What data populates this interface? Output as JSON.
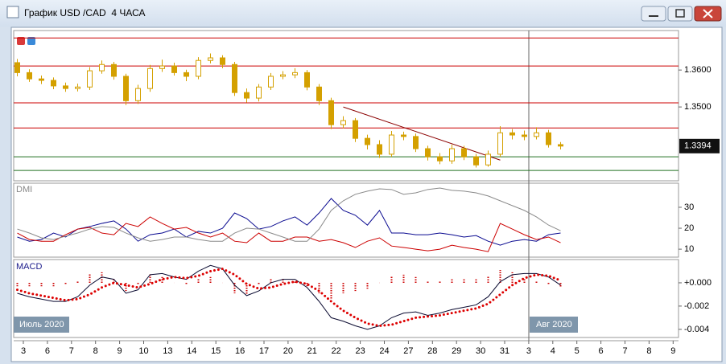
{
  "window": {
    "title": "График USD /CAD  4 ЧАСА"
  },
  "x_labels": [
    "3",
    "6",
    "7",
    "8",
    "9",
    "10",
    "13",
    "14",
    "15",
    "16",
    "17",
    "20",
    "21",
    "22",
    "23",
    "24",
    "27",
    "28",
    "29",
    "30",
    "31",
    "3",
    "4",
    "5",
    "6",
    "7",
    "8",
    "9"
  ],
  "period_labels": [
    "Июль 2020",
    "Авг 2020"
  ],
  "chart_data": [
    {
      "type": "candlestick",
      "color": "#d4a000",
      "ylim": [
        1.33,
        1.3707
      ],
      "yticks": [
        {
          "value": 1.36,
          "label": "1.3600"
        },
        {
          "value": 1.35,
          "label": "1.3500"
        }
      ],
      "open": [
        1.362,
        1.3593,
        1.3576,
        1.3572,
        1.3557,
        1.355,
        1.3554,
        1.3598,
        1.3615,
        1.3583,
        1.3517,
        1.355,
        1.3604,
        1.3611,
        1.3593,
        1.3583,
        1.3626,
        1.3633,
        1.3615,
        1.3539,
        1.3524,
        1.3554,
        1.3583,
        1.3587,
        1.3593,
        1.3554,
        1.3517,
        1.3452,
        1.3463,
        1.3415,
        1.3398,
        1.3372,
        1.3424,
        1.342,
        1.3387,
        1.3365,
        1.3354,
        1.3387,
        1.3365,
        1.3343,
        1.3372,
        1.343,
        1.3424,
        1.342,
        1.343,
        1.3398
      ],
      "high": [
        1.363,
        1.3602,
        1.3585,
        1.358,
        1.3566,
        1.3563,
        1.3608,
        1.3626,
        1.3622,
        1.359,
        1.356,
        1.3614,
        1.3628,
        1.362,
        1.3601,
        1.3635,
        1.3645,
        1.364,
        1.3622,
        1.355,
        1.3562,
        1.3592,
        1.3597,
        1.3605,
        1.36,
        1.3562,
        1.3525,
        1.3475,
        1.347,
        1.3425,
        1.341,
        1.3435,
        1.3433,
        1.3428,
        1.3395,
        1.3375,
        1.3398,
        1.3395,
        1.3373,
        1.3382,
        1.3448,
        1.344,
        1.3436,
        1.3445,
        1.3438,
        1.3405
      ],
      "low": [
        1.3583,
        1.3568,
        1.3562,
        1.3548,
        1.3541,
        1.3542,
        1.3546,
        1.359,
        1.3574,
        1.3505,
        1.3508,
        1.3541,
        1.3595,
        1.3585,
        1.357,
        1.3575,
        1.3618,
        1.3605,
        1.353,
        1.3512,
        1.3515,
        1.3546,
        1.3575,
        1.3578,
        1.3545,
        1.3505,
        1.344,
        1.3442,
        1.3405,
        1.3385,
        1.3362,
        1.3365,
        1.341,
        1.3378,
        1.3355,
        1.3345,
        1.3346,
        1.3356,
        1.3336,
        1.3338,
        1.3365,
        1.3412,
        1.341,
        1.3412,
        1.339,
        1.3385
      ],
      "close": [
        1.3593,
        1.3576,
        1.3572,
        1.3557,
        1.355,
        1.3554,
        1.3598,
        1.3615,
        1.3583,
        1.3517,
        1.355,
        1.3604,
        1.3611,
        1.3593,
        1.3583,
        1.3626,
        1.3633,
        1.3615,
        1.3539,
        1.3524,
        1.3554,
        1.3583,
        1.3587,
        1.3593,
        1.3554,
        1.3517,
        1.3452,
        1.3463,
        1.3415,
        1.3398,
        1.3372,
        1.3424,
        1.342,
        1.3387,
        1.3365,
        1.3354,
        1.3387,
        1.3365,
        1.3343,
        1.3372,
        1.343,
        1.3424,
        1.342,
        1.343,
        1.3398,
        1.3394
      ],
      "levels": [
        {
          "value": 1.3687,
          "color": "#cc0000"
        },
        {
          "value": 1.3611,
          "color": "#cc0000"
        },
        {
          "value": 1.3511,
          "color": "#cc0000"
        },
        {
          "value": 1.3443,
          "color": "#cc0000"
        },
        {
          "value": 1.3365,
          "color": "#207020"
        },
        {
          "value": 1.3328,
          "color": "#207020"
        }
      ],
      "trendline": {
        "from": [
          27,
          1.35
        ],
        "to": [
          40,
          1.3356
        ],
        "color": "#8b0000"
      }
    },
    {
      "type": "line",
      "title": "DMI",
      "ylim": [
        6.2,
        41.5
      ],
      "yticks": [
        10,
        20,
        30
      ],
      "series": [
        {
          "style": "line",
          "color": "#0a0a90",
          "values": [
            15.8,
            13.8,
            14.6,
            17.7,
            15.8,
            19.6,
            20.8,
            22.3,
            23.5,
            19.6,
            13.8,
            16.9,
            17.7,
            19.6,
            15.8,
            18.5,
            17.7,
            20.0,
            27.3,
            24.6,
            19.6,
            20.8,
            23.5,
            25.4,
            21.5,
            27.3,
            34.2,
            28.5,
            26.2,
            21.5,
            28.5,
            17.7,
            17.7,
            16.9,
            16.9,
            17.7,
            16.9,
            15.8,
            16.5,
            13.8,
            11.9,
            13.8,
            14.6,
            13.8,
            16.9,
            17.7
          ]
        },
        {
          "style": "line",
          "color": "#cc0000",
          "values": [
            17.7,
            14.6,
            13.8,
            13.8,
            16.9,
            19.6,
            20.4,
            17.7,
            16.9,
            22.3,
            20.8,
            25.4,
            22.3,
            19.6,
            20.4,
            17.7,
            15.8,
            17.7,
            13.8,
            13.1,
            17.7,
            13.8,
            13.8,
            15.8,
            15.8,
            13.8,
            14.6,
            13.1,
            10.8,
            13.8,
            15.4,
            11.5,
            10.8,
            10.0,
            9.2,
            10.0,
            11.9,
            10.8,
            10.0,
            8.8,
            22.3,
            19.6,
            16.9,
            14.6,
            15.8,
            13.1
          ]
        },
        {
          "style": "line",
          "color": "#8a8a8a",
          "values": [
            19.6,
            17.7,
            15.4,
            14.6,
            16.2,
            17.7,
            19.6,
            20.8,
            20.4,
            17.7,
            15.4,
            13.8,
            14.6,
            15.8,
            15.8,
            14.6,
            13.8,
            13.8,
            17.7,
            20.0,
            19.6,
            17.7,
            15.8,
            13.8,
            13.8,
            19.6,
            28.5,
            33.1,
            36.2,
            37.7,
            38.8,
            38.5,
            36.2,
            36.9,
            38.5,
            39.2,
            38.1,
            37.7,
            36.9,
            35.4,
            33.1,
            30.8,
            28.5,
            25.4,
            21.5,
            18.8
          ]
        }
      ]
    },
    {
      "type": "line",
      "title": "MACD",
      "ylim": [
        -0.0047,
        0.002
      ],
      "yticks": [
        {
          "value": 0,
          "label": "+0.000"
        },
        {
          "value": -0.002,
          "label": "-0.002"
        },
        {
          "value": -0.004,
          "label": "-0.004"
        }
      ],
      "series": [
        {
          "style": "bar",
          "color": "#cc0000",
          "values": [
            -0.0003,
            -0.0003,
            -0.0003,
            -0.0003,
            -0.0001,
            0.0002,
            0.0008,
            0.0009,
            0.0003,
            -0.0007,
            -0.0002,
            0.0008,
            0.0005,
            0.0,
            -0.0001,
            0.0004,
            0.0005,
            0.0,
            -0.0009,
            -0.001,
            -0.0002,
            0.0004,
            0.0004,
            0.0002,
            -0.0003,
            -0.0009,
            -0.0014,
            -0.0009,
            -0.0007,
            -0.0005,
            0.0,
            0.0006,
            0.0007,
            0.0005,
            0.0001,
            0.0002,
            0.0003,
            0.0003,
            0.0003,
            0.0006,
            0.0011,
            0.0009,
            0.0004,
            0.0001,
            -0.0001,
            -0.0004
          ]
        },
        {
          "style": "line",
          "color": "#0a0a30",
          "values": [
            -0.0009,
            -0.0012,
            -0.0014,
            -0.0016,
            -0.0016,
            -0.0012,
            -0.0002,
            0.0005,
            0.0003,
            -0.0009,
            -0.0006,
            0.0007,
            0.0008,
            0.0005,
            0.0003,
            0.001,
            0.0015,
            0.0012,
            -0.0002,
            -0.0011,
            -0.0007,
            0,
            0.0003,
            0.0003,
            -0.0004,
            -0.0016,
            -0.003,
            -0.0033,
            -0.0037,
            -0.004,
            -0.0037,
            -0.003,
            -0.0026,
            -0.0025,
            -0.0028,
            -0.0026,
            -0.0023,
            -0.0021,
            -0.0019,
            -0.0012,
            0.0001,
            0.0007,
            0.0008,
            0.0008,
            0.0005,
            -0.0002
          ]
        },
        {
          "style": "dots",
          "color": "#dd0000",
          "values": [
            -0.0006,
            -0.0009,
            -0.0011,
            -0.0013,
            -0.0015,
            -0.0014,
            -0.001,
            -0.0004,
            0,
            -0.0002,
            -0.0004,
            -0.0001,
            0.0003,
            0.0005,
            0.0004,
            0.0006,
            0.001,
            0.0012,
            0.0007,
            -0.0001,
            -0.0005,
            -0.0004,
            -0.0001,
            0.0001,
            -0.0001,
            -0.0007,
            -0.0016,
            -0.0024,
            -0.003,
            -0.0035,
            -0.0037,
            -0.0036,
            -0.0033,
            -0.003,
            -0.0029,
            -0.0028,
            -0.0026,
            -0.0024,
            -0.0022,
            -0.0018,
            -0.001,
            -0.0002,
            0.0004,
            0.0007,
            0.0006,
            0.0002
          ]
        }
      ]
    }
  ]
}
